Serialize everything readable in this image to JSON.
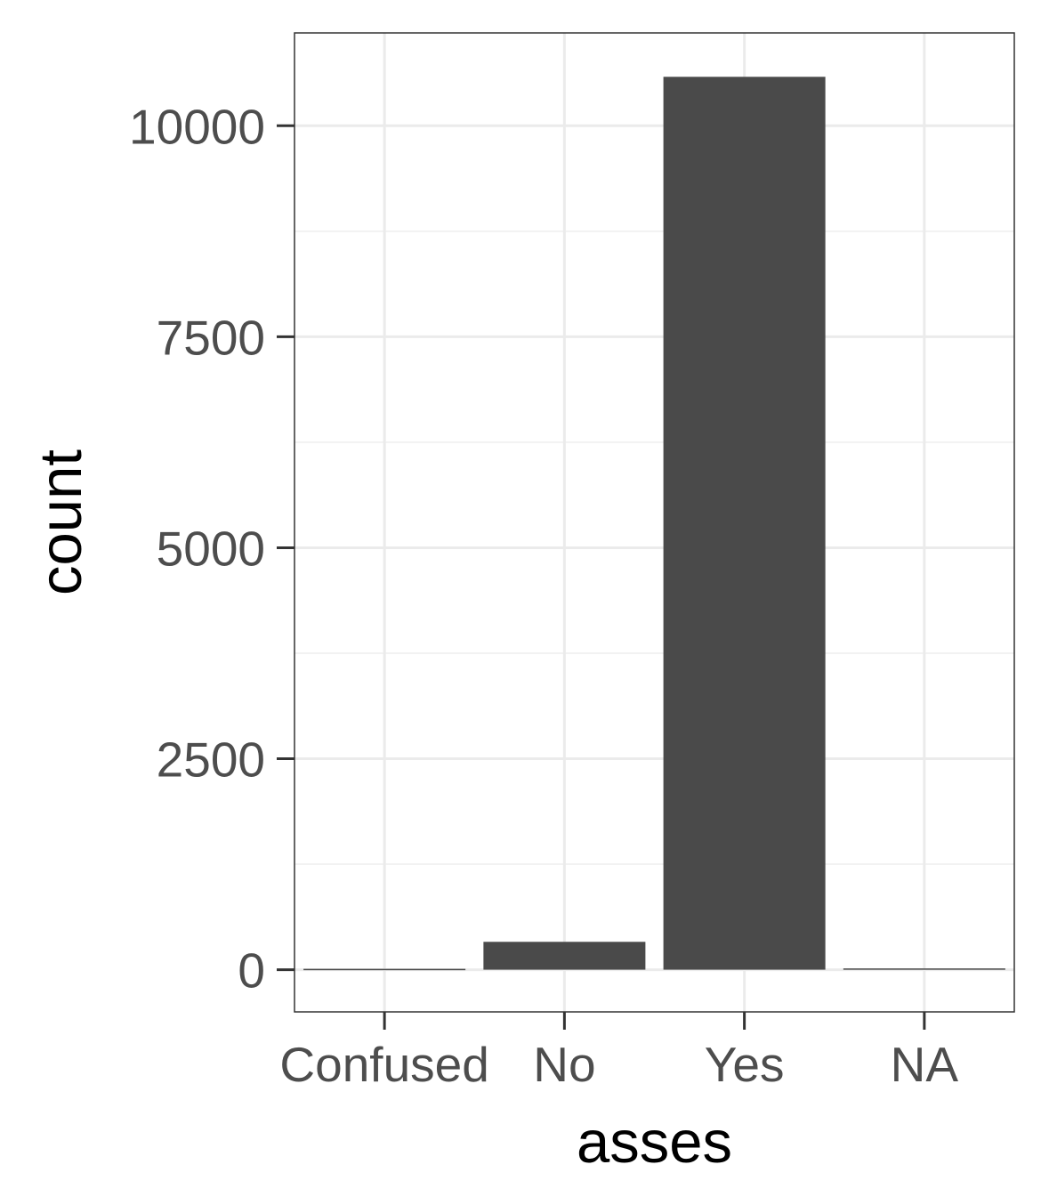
{
  "chart_data": {
    "type": "bar",
    "title": "",
    "xlabel": "asses",
    "ylabel": "count",
    "categories": [
      "Confused",
      "No",
      "Yes",
      "NA"
    ],
    "values": [
      10,
      330,
      10580,
      15
    ],
    "ylim": [
      -500,
      11100
    ],
    "yticks": [
      0,
      2500,
      5000,
      7500,
      10000
    ],
    "yticks_labels": [
      "0",
      "2500",
      "5000",
      "7500",
      "10000"
    ],
    "minor_yticks": [
      1250,
      3750,
      6250,
      8750
    ],
    "grid": true,
    "legend": "none",
    "colors": {
      "bar": "#4a4a4a",
      "panel_border": "#333333",
      "grid_major": "#ebebeb",
      "grid_minor": "#f2f2f2",
      "tick_text": "#4d4d4d",
      "axis_title": "#000000"
    }
  }
}
